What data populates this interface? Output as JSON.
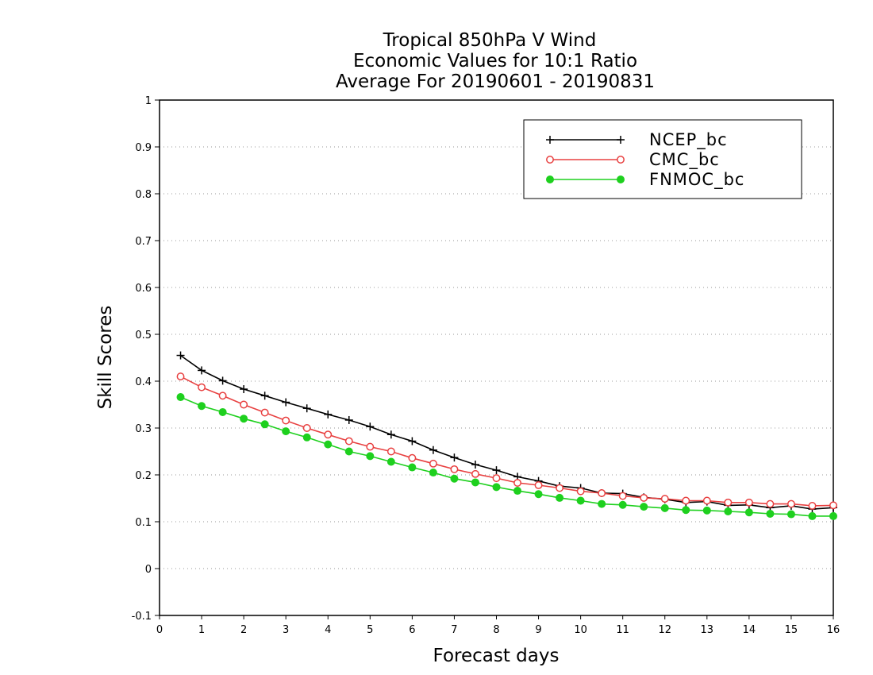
{
  "chart_data": {
    "type": "line",
    "title": [
      "Tropical 850hPa V Wind",
      "Economic Values for 10:1 Ratio",
      "Average For 20190601 - 20190831"
    ],
    "xlabel": "Forecast days",
    "ylabel": "Skill Scores",
    "xlim": [
      0,
      16
    ],
    "ylim": [
      -0.1,
      1
    ],
    "xticks": [
      0,
      1,
      2,
      3,
      4,
      5,
      6,
      7,
      8,
      9,
      10,
      11,
      12,
      13,
      14,
      15,
      16
    ],
    "yticks": [
      -0.1,
      0,
      0.1,
      0.2,
      0.3,
      0.4,
      0.5,
      0.6,
      0.7,
      0.8,
      0.9,
      1
    ],
    "ytick_labels": [
      "-0.1",
      "0",
      "0.1",
      "0.2",
      "0.3",
      "0.4",
      "0.5",
      "0.6",
      "0.7",
      "0.8",
      "0.9",
      "1"
    ],
    "grid": "horizontal-dotted",
    "legend_position": "top-right",
    "x": [
      0.5,
      1,
      1.5,
      2,
      2.5,
      3,
      3.5,
      4,
      4.5,
      5,
      5.5,
      6,
      6.5,
      7,
      7.5,
      8,
      8.5,
      9,
      9.5,
      10,
      10.5,
      11,
      11.5,
      12,
      12.5,
      13,
      13.5,
      14,
      14.5,
      15,
      15.5,
      16
    ],
    "series": [
      {
        "name": "NCEP_bc",
        "color": "#000000",
        "marker": "plus",
        "values": [
          0.455,
          0.423,
          0.401,
          0.383,
          0.369,
          0.355,
          0.342,
          0.329,
          0.317,
          0.303,
          0.286,
          0.272,
          0.253,
          0.237,
          0.222,
          0.21,
          0.196,
          0.187,
          0.176,
          0.172,
          0.161,
          0.16,
          0.152,
          0.148,
          0.141,
          0.143,
          0.135,
          0.136,
          0.13,
          0.134,
          0.127,
          0.13
        ]
      },
      {
        "name": "CMC_bc",
        "color": "#e84040",
        "marker": "open-circle",
        "values": [
          0.41,
          0.387,
          0.369,
          0.35,
          0.333,
          0.316,
          0.3,
          0.286,
          0.272,
          0.26,
          0.25,
          0.236,
          0.224,
          0.212,
          0.202,
          0.193,
          0.183,
          0.178,
          0.172,
          0.165,
          0.161,
          0.155,
          0.151,
          0.149,
          0.145,
          0.145,
          0.141,
          0.141,
          0.138,
          0.138,
          0.134,
          0.135
        ]
      },
      {
        "name": "FNMOC_bc",
        "color": "#1ed01e",
        "marker": "filled-circle",
        "values": [
          0.366,
          0.347,
          0.334,
          0.32,
          0.308,
          0.293,
          0.28,
          0.265,
          0.25,
          0.24,
          0.228,
          0.216,
          0.205,
          0.192,
          0.184,
          0.174,
          0.166,
          0.159,
          0.151,
          0.145,
          0.138,
          0.136,
          0.132,
          0.129,
          0.125,
          0.124,
          0.122,
          0.12,
          0.117,
          0.116,
          0.112,
          0.112
        ]
      }
    ]
  }
}
